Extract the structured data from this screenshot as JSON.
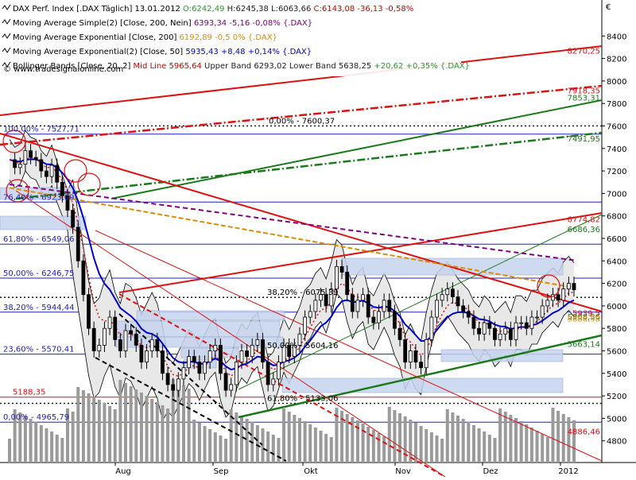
{
  "currency_symbol": "€",
  "legend": [
    {
      "prefix": "DAX Perf. Index [.DAX Täglich] 13.01.2012",
      "parts": [
        {
          "text": "O:6242,49",
          "color": "#2a9a2a"
        },
        {
          "text": "H:6245,38",
          "color": "#222222"
        },
        {
          "text": "L:6063,66",
          "color": "#222222"
        },
        {
          "text": "C:6143,08 -36,13 -0,58%",
          "color": "#cc0000"
        }
      ],
      "icon": "chart-index-icon"
    },
    {
      "prefix": "Moving Average Simple(2) [Close, 200, Nein]",
      "parts": [
        {
          "text": "6393,34 -5,16 -0,08% {.DAX}",
          "color": "#800080"
        }
      ],
      "icon": "indicator-icon"
    },
    {
      "prefix": "Moving Average Exponential [Close, 200]",
      "parts": [
        {
          "text": "6192,89 -0,5 0% {.DAX}",
          "color": "#e08a00"
        }
      ],
      "icon": "indicator-icon"
    },
    {
      "prefix": "Moving Average Exponential(2) [Close, 50]",
      "parts": [
        {
          "text": "5935,43 +8,48 +0,14% {.DAX}",
          "color": "#0000cc"
        }
      ],
      "icon": "indicator-icon"
    },
    {
      "prefix": "Bollinger Bands [Close, 20, 2]",
      "parts": [
        {
          "text": "Mid Line 5965,64",
          "color": "#cc0000"
        },
        {
          "text": "Upper Band 6293,02 Lower Band 5638,25",
          "color": "#222222"
        },
        {
          "text": "+20,62 +0,35% {.DAX}",
          "color": "#2a9a2a"
        }
      ],
      "icon": "indicator-icon"
    }
  ],
  "copyright": "© www.tradesignalonline.com",
  "colors": {
    "upper_red_channel": "#dd1111",
    "dark_green": "#1a7a1a",
    "blue_ma": "#0000cc",
    "orange_ma": "#e08a00",
    "purple_ma": "#800080",
    "bollinger_fill": "#e8e8e8",
    "zone_fill": "#c6d4ee",
    "volume_bar": "#9a9a9a",
    "up_candle": "#ffffff",
    "down_candle": "#000000"
  },
  "chart_data": {
    "type": "candlestick",
    "ylim": [
      4600,
      8600
    ],
    "y_ticks": [
      4800,
      5000,
      5200,
      5400,
      5600,
      5800,
      6000,
      6200,
      6400,
      6600,
      6800,
      7000,
      7200,
      7400,
      7600,
      7800,
      8000,
      8200,
      8400
    ],
    "x_labels": [
      "Aug",
      "Sep",
      "Okt",
      "Nov",
      "Dez",
      "2012"
    ],
    "fib_labels": [
      {
        "text": "100,00% - 7527,71",
        "value": 7527.71
      },
      {
        "text": "76,40% - 6923,09",
        "value": 6923.09
      },
      {
        "text": "61,80% - 6549,06",
        "value": 6549.06
      },
      {
        "text": "50,00% - 6246,75",
        "value": 6246.75
      },
      {
        "text": "38,20% - 5944,44",
        "value": 5944.44
      },
      {
        "text": "23,60% - 5570,41",
        "value": 5570.41
      },
      {
        "text": "5188,35",
        "value": 5188.35
      },
      {
        "text": "0,00% - 4965,79",
        "value": 4965.79
      }
    ],
    "inner_fib_labels": [
      {
        "text": "0,00% - 7600,37",
        "value": 7600.37
      },
      {
        "text": "38,20% - 6075,39",
        "value": 6075.39
      },
      {
        "text": "50,00% - 5604,16",
        "value": 5604.16
      },
      {
        "text": "61,80% - 5133,06",
        "value": 5133.06
      }
    ],
    "right_labels": [
      {
        "text": "8270,25",
        "value": 8270.25,
        "color": "#dd1111"
      },
      {
        "text": "7918,35",
        "value": 7918.35,
        "color": "#dd1111"
      },
      {
        "text": "7853,31",
        "value": 7853.31,
        "color": "#1a7a1a"
      },
      {
        "text": "7491,95",
        "value": 7491.95,
        "color": "#1a7a1a"
      },
      {
        "text": "6774,82",
        "value": 6774.82,
        "color": "#dd1111"
      },
      {
        "text": "6686,36",
        "value": 6686.36,
        "color": "#1a7a1a"
      },
      {
        "text": "5939,5",
        "value": 5939.5,
        "color": "#dd1111"
      },
      {
        "text": "5908,56",
        "value": 5908.56,
        "color": "#1a7a1a"
      },
      {
        "text": "5888,58",
        "value": 5888.58,
        "color": "#e08a00"
      },
      {
        "text": "5663,14",
        "value": 5663.14,
        "color": "#1a7a1a"
      },
      {
        "text": "4886,46",
        "value": 4886.46,
        "color": "#dd1111"
      }
    ],
    "close_series": [
      7300,
      7230,
      7260,
      7380,
      7320,
      7300,
      7200,
      7150,
      7250,
      7100,
      6980,
      6850,
      6700,
      6400,
      6100,
      5800,
      5600,
      5650,
      5800,
      5900,
      5700,
      5600,
      5780,
      5750,
      5650,
      5500,
      5600,
      5700,
      5600,
      5400,
      5300,
      5250,
      5350,
      5450,
      5550,
      5500,
      5400,
      5500,
      5600,
      5650,
      5400,
      5250,
      5300,
      5500,
      5600,
      5550,
      5650,
      5700,
      5500,
      5300,
      5350,
      5500,
      5650,
      5550,
      5650,
      5750,
      5900,
      5950,
      6050,
      6100,
      6000,
      6150,
      6350,
      6300,
      6100,
      5950,
      6050,
      6100,
      5900,
      5850,
      5950,
      6050,
      5950,
      5800,
      5700,
      5500,
      5600,
      5500,
      5450,
      5700,
      5900,
      6050,
      6100,
      6150,
      6080,
      6000,
      5950,
      5900,
      5800,
      5750,
      5850,
      5800,
      5700,
      5750,
      5800,
      5700,
      5850,
      5850,
      5800,
      5900,
      5900,
      6000,
      6050,
      6100,
      6050,
      6150,
      6200,
      6143
    ]
  }
}
